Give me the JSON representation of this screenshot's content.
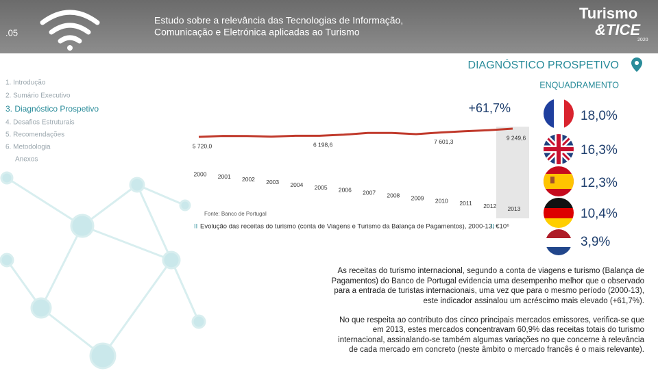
{
  "header": {
    "section_number": ".05",
    "title_line1": "Estudo sobre a relevância das Tecnologias de Informação,",
    "title_line2": "Comunicação e Eletrónica aplicadas ao Turismo",
    "logo_top": "Turismo",
    "logo_bottom": "&TICE",
    "logo_year": "2020"
  },
  "section": {
    "title": "DIAGNÓSTICO PROSPETIVO",
    "subtitle": "ENQUADRAMENTO"
  },
  "menu": [
    "1. Introdução",
    "2. Sumário Executivo",
    "3. Diagnóstico Prospetivo",
    "4. Desafios Estruturais",
    "5. Recomendações",
    "6. Metodologia",
    "Anexos"
  ],
  "chart_data": {
    "type": "line",
    "x": [
      2000,
      2001,
      2002,
      2003,
      2004,
      2005,
      2006,
      2007,
      2008,
      2009,
      2010,
      2011,
      2012,
      2013
    ],
    "values": [
      5720.0,
      6126,
      6095,
      5849,
      6195,
      6198.6,
      6669,
      7402,
      7440,
      6908,
      7601.3,
      8146,
      8606,
      9249.6
    ],
    "value_labels": [
      "5 720,0",
      null,
      null,
      null,
      null,
      "6 198,6",
      null,
      null,
      null,
      null,
      "7 601,3",
      null,
      null,
      "9 249,6"
    ],
    "color": "#c0392b",
    "annotation": "+61,7%",
    "source": "Fonte: Banco de Portugal",
    "caption_mark": "II",
    "caption": "Evolução das receitas do turismo (conta de Viagens e Turismo da Balança de Pagamentos), 2000-13, €10⁶"
  },
  "markets": [
    "18,0%",
    "16,3%",
    "12,3%",
    "10,4%",
    "3,9%"
  ],
  "paragraphs": [
    [
      "As receitas do turismo internacional, segundo a conta de viagens e turismo (Balança de",
      "Pagamentos) do Banco de Portugal evidencia uma desempenho melhor que o observado",
      "para a entrada de turistas internacionais, uma vez que para o mesmo período (2000-13),",
      "este indicador assinalou um acréscimo mais elevado (+61,7%)."
    ],
    [
      "No que respeita ao contributo dos cinco principais mercados emissores, verifica-se que",
      "em 2013, estes mercados concentravam 60,9% das receitas totais do turismo",
      "internacional, assinalando-se também algumas variações no que concerne à relevância",
      "de cada mercado em concreto (neste âmbito o mercado francês é o mais relevante)."
    ]
  ]
}
